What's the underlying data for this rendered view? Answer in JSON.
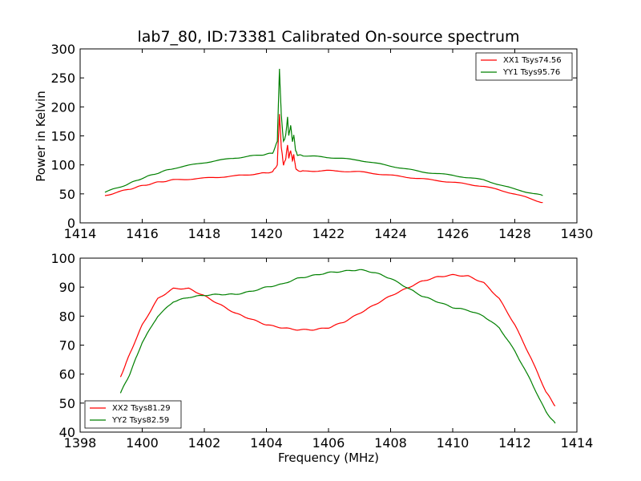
{
  "figure_title": "lab7_80, ID:73381 Calibrated On-source spectrum",
  "colors": {
    "xx": "#ff0000",
    "yy": "#008000",
    "axis": "#000000",
    "background": "#ffffff"
  },
  "chart_data": [
    {
      "type": "line",
      "title": "lab7_80, ID:73381 Calibrated On-source spectrum",
      "xlabel": "",
      "ylabel": "Power in Kelvin",
      "xlim": [
        1414,
        1430
      ],
      "ylim": [
        0,
        300
      ],
      "xticks": [
        1414,
        1416,
        1418,
        1420,
        1422,
        1424,
        1426,
        1428,
        1430
      ],
      "yticks": [
        0,
        50,
        100,
        150,
        200,
        250,
        300
      ],
      "grid": false,
      "legend_position": "top-right",
      "series": [
        {
          "name": "XX1 Tsys74.56",
          "color": "#ff0000",
          "x": [
            1414.8,
            1415.5,
            1416.0,
            1416.5,
            1417.0,
            1418.0,
            1419.0,
            1419.8,
            1420.2,
            1420.35,
            1420.42,
            1420.48,
            1420.55,
            1420.62,
            1420.68,
            1420.72,
            1420.78,
            1420.84,
            1420.88,
            1420.94,
            1421.0,
            1421.2,
            1422.0,
            1423.0,
            1424.0,
            1425.0,
            1426.0,
            1427.0,
            1428.0,
            1428.9
          ],
          "y": [
            47,
            57,
            64,
            70,
            74,
            77,
            81,
            85,
            88,
            100,
            188,
            130,
            100,
            110,
            135,
            112,
            125,
            107,
            118,
            95,
            90,
            89,
            90,
            88,
            82,
            76,
            70,
            63,
            50,
            35
          ]
        },
        {
          "name": "YY1 Tsys95.76",
          "color": "#008000",
          "x": [
            1414.8,
            1415.5,
            1416.0,
            1416.5,
            1417.0,
            1418.0,
            1419.0,
            1419.8,
            1420.2,
            1420.35,
            1420.42,
            1420.48,
            1420.55,
            1420.62,
            1420.68,
            1420.72,
            1420.78,
            1420.84,
            1420.88,
            1420.94,
            1421.0,
            1421.2,
            1422.0,
            1423.0,
            1424.0,
            1425.0,
            1426.0,
            1427.0,
            1428.0,
            1428.9
          ],
          "y": [
            53,
            66,
            77,
            86,
            94,
            104,
            112,
            117,
            120,
            140,
            265,
            185,
            140,
            150,
            182,
            150,
            168,
            140,
            152,
            125,
            117,
            116,
            113,
            108,
            98,
            88,
            82,
            74,
            58,
            47
          ]
        }
      ]
    },
    {
      "type": "line",
      "title": "",
      "xlabel": "Frequency (MHz)",
      "ylabel": "",
      "xlim": [
        1398,
        1414
      ],
      "ylim": [
        40,
        100
      ],
      "xticks": [
        1398,
        1400,
        1402,
        1404,
        1406,
        1408,
        1410,
        1412,
        1414
      ],
      "yticks": [
        40,
        50,
        60,
        70,
        80,
        90,
        100
      ],
      "grid": false,
      "legend_position": "bottom-left",
      "series": [
        {
          "name": "XX2 Tsys81.29",
          "color": "#ff0000",
          "x": [
            1399.3,
            1399.6,
            1400.0,
            1400.5,
            1401.0,
            1401.5,
            1402.0,
            1402.5,
            1403.0,
            1403.5,
            1404.0,
            1404.5,
            1405.0,
            1405.5,
            1406.0,
            1406.5,
            1407.0,
            1407.5,
            1408.0,
            1408.5,
            1409.0,
            1409.5,
            1410.0,
            1410.5,
            1411.0,
            1411.5,
            1412.0,
            1412.5,
            1413.0,
            1413.3
          ],
          "y": [
            59,
            67,
            77,
            86,
            89.5,
            89.5,
            87,
            84,
            81,
            79,
            77,
            76,
            75.3,
            75.3,
            76,
            78,
            81,
            84,
            87,
            89.5,
            92,
            93.5,
            94.2,
            93.8,
            91.5,
            86,
            77,
            66,
            54,
            49
          ]
        },
        {
          "name": "YY2 Tsys82.59",
          "color": "#008000",
          "x": [
            1399.3,
            1399.6,
            1400.0,
            1400.5,
            1401.0,
            1401.5,
            1402.0,
            1402.5,
            1403.0,
            1403.5,
            1404.0,
            1404.5,
            1405.0,
            1405.5,
            1406.0,
            1406.5,
            1407.0,
            1407.5,
            1408.0,
            1408.5,
            1409.0,
            1409.5,
            1410.0,
            1410.5,
            1411.0,
            1411.5,
            1412.0,
            1412.5,
            1413.0,
            1413.3
          ],
          "y": [
            53.5,
            60,
            71,
            80,
            85,
            86.5,
            87.2,
            87.5,
            87.5,
            88.5,
            90,
            91,
            93,
            94,
            95,
            95.5,
            96,
            95,
            93,
            90,
            87,
            85,
            83,
            82,
            80,
            76,
            68,
            58,
            47,
            43
          ]
        }
      ]
    }
  ]
}
